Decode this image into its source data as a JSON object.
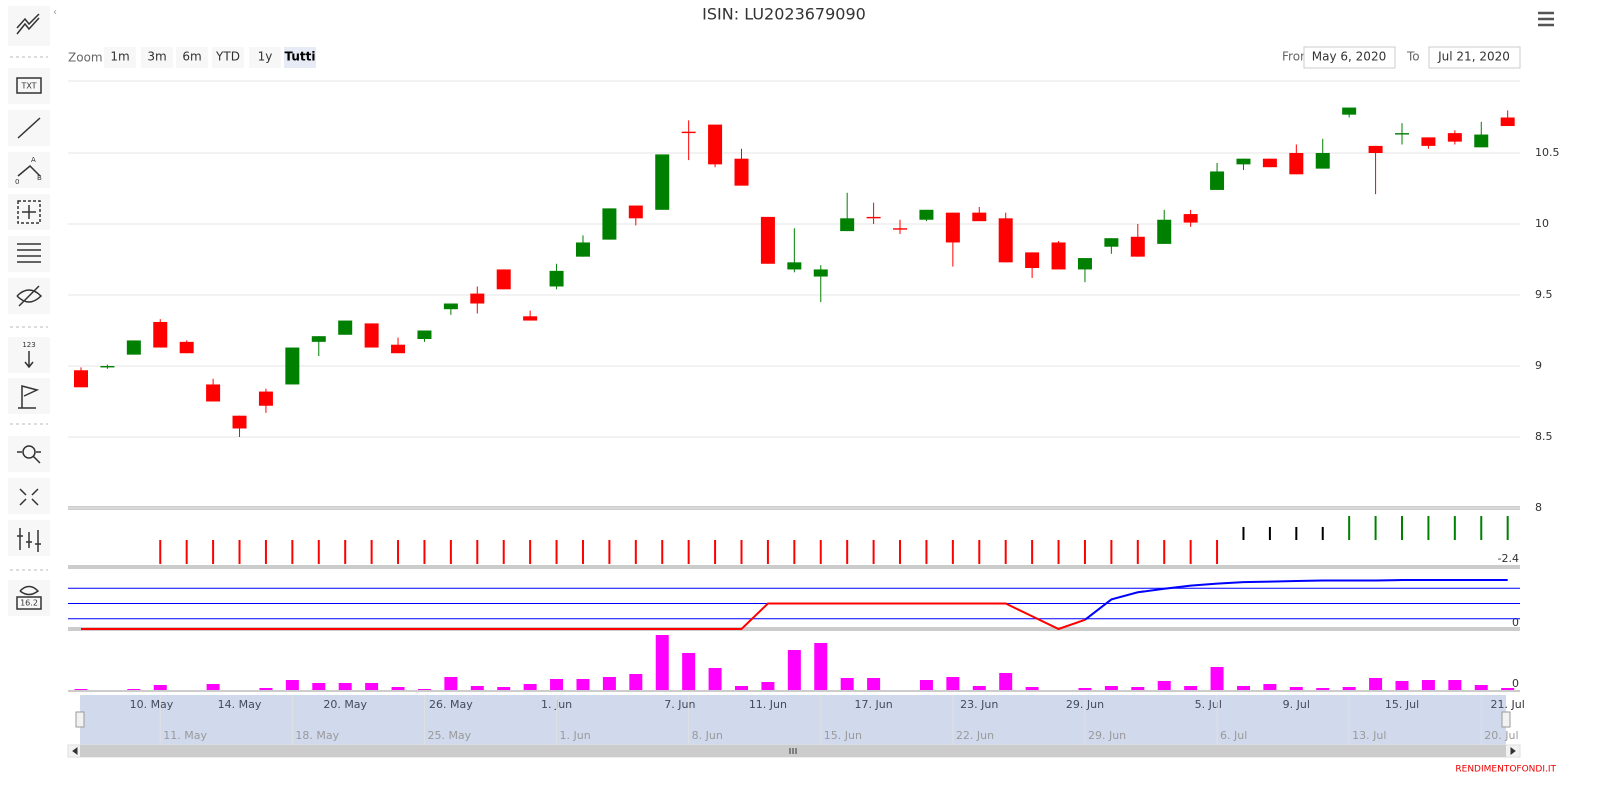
{
  "toolbar_labels": {
    "text": "TXT",
    "angle_a": "A",
    "angle_0": "0",
    "angle_b": "B",
    "measure": "123",
    "price": "16.2"
  },
  "chart_data": [
    {
      "type": "candlestick",
      "title": "ISIN: LU2023679090",
      "zoom_label": "Zoom",
      "zoom_buttons": [
        "1m",
        "3m",
        "6m",
        "YTD",
        "1y",
        "Tutti"
      ],
      "zoom_selected_index": 5,
      "from_label": "From",
      "from": "May 6, 2020",
      "to_label": "To",
      "to": "Jul 21, 2020",
      "x": [
        "2020-05-06",
        "2020-05-07",
        "2020-05-08",
        "2020-05-11",
        "2020-05-12",
        "2020-05-13",
        "2020-05-14",
        "2020-05-15",
        "2020-05-18",
        "2020-05-19",
        "2020-05-20",
        "2020-05-21",
        "2020-05-22",
        "2020-05-25",
        "2020-05-26",
        "2020-05-27",
        "2020-05-28",
        "2020-05-29",
        "2020-06-01",
        "2020-06-02",
        "2020-06-03",
        "2020-06-04",
        "2020-06-05",
        "2020-06-08",
        "2020-06-09",
        "2020-06-10",
        "2020-06-11",
        "2020-06-12",
        "2020-06-15",
        "2020-06-16",
        "2020-06-17",
        "2020-06-18",
        "2020-06-19",
        "2020-06-22",
        "2020-06-23",
        "2020-06-24",
        "2020-06-25",
        "2020-06-26",
        "2020-06-29",
        "2020-06-30",
        "2020-07-01",
        "2020-07-02",
        "2020-07-03",
        "2020-07-06",
        "2020-07-07",
        "2020-07-08",
        "2020-07-09",
        "2020-07-10",
        "2020-07-13",
        "2020-07-14",
        "2020-07-15",
        "2020-07-16",
        "2020-07-17",
        "2020-07-20",
        "2020-07-21"
      ],
      "open": [
        8.97,
        8.99,
        9.08,
        9.31,
        9.17,
        8.87,
        8.65,
        8.82,
        8.87,
        9.17,
        9.22,
        9.3,
        9.15,
        9.19,
        9.4,
        9.51,
        9.68,
        9.35,
        9.56,
        9.77,
        9.89,
        10.13,
        10.1,
        10.65,
        10.7,
        10.46,
        10.05,
        9.68,
        9.63,
        9.95,
        10.05,
        9.97,
        10.03,
        10.08,
        10.08,
        10.04,
        9.8,
        9.87,
        9.68,
        9.84,
        9.91,
        9.86,
        10.07,
        10.24,
        10.42,
        10.46,
        10.5,
        10.39,
        10.77,
        10.55,
        10.63,
        10.61,
        10.64,
        10.54,
        10.75
      ],
      "high": [
        8.99,
        9.01,
        9.18,
        9.33,
        9.18,
        8.91,
        8.65,
        8.84,
        9.13,
        9.21,
        9.32,
        9.3,
        9.2,
        9.25,
        9.44,
        9.56,
        9.68,
        9.39,
        9.72,
        9.92,
        10.11,
        10.13,
        10.49,
        10.73,
        10.7,
        10.53,
        10.05,
        9.97,
        9.71,
        10.22,
        10.15,
        10.03,
        10.1,
        10.08,
        10.12,
        10.08,
        9.8,
        9.88,
        9.76,
        9.9,
        10.0,
        10.1,
        10.1,
        10.43,
        10.46,
        10.46,
        10.56,
        10.6,
        10.82,
        10.55,
        10.71,
        10.61,
        10.66,
        10.72,
        10.8
      ],
      "low": [
        8.85,
        8.98,
        9.08,
        9.13,
        9.09,
        8.75,
        8.5,
        8.67,
        8.87,
        9.07,
        9.22,
        9.13,
        9.09,
        9.17,
        9.36,
        9.37,
        9.54,
        9.32,
        9.54,
        9.77,
        9.89,
        9.99,
        10.1,
        10.45,
        10.4,
        10.27,
        9.72,
        9.66,
        9.45,
        9.95,
        10.0,
        9.93,
        10.02,
        9.7,
        10.02,
        9.73,
        9.62,
        9.68,
        9.59,
        9.79,
        9.77,
        9.86,
        9.98,
        10.24,
        10.38,
        10.4,
        10.35,
        10.39,
        10.75,
        10.21,
        10.56,
        10.53,
        10.56,
        10.54,
        10.69
      ],
      "close": [
        8.85,
        9.0,
        9.18,
        9.13,
        9.09,
        8.75,
        8.56,
        8.72,
        9.13,
        9.21,
        9.32,
        9.13,
        9.09,
        9.25,
        9.44,
        9.44,
        9.54,
        9.32,
        9.67,
        9.87,
        10.11,
        10.04,
        10.49,
        10.64,
        10.42,
        10.27,
        9.72,
        9.73,
        9.68,
        10.04,
        10.04,
        9.96,
        10.1,
        9.87,
        10.02,
        9.73,
        9.69,
        9.68,
        9.76,
        9.9,
        9.77,
        10.03,
        10.01,
        10.37,
        10.46,
        10.4,
        10.35,
        10.5,
        10.82,
        10.5,
        10.64,
        10.55,
        10.58,
        10.63,
        10.69
      ],
      "up_color": "#008000",
      "down_color": "#ff0000",
      "ylim": [
        8,
        11
      ],
      "yticks": [
        8,
        8.5,
        9,
        9.5,
        10,
        10.5
      ],
      "grid": true,
      "xticks": [
        {
          "value": "2020-05-10",
          "label": "10. May"
        },
        {
          "value": "2020-05-14",
          "label": "14. May"
        },
        {
          "value": "2020-05-20",
          "label": "20. May"
        },
        {
          "value": "2020-05-26",
          "label": "26. May"
        },
        {
          "value": "2020-06-01",
          "label": "1. Jun"
        },
        {
          "value": "2020-06-07",
          "label": "7. Jun"
        },
        {
          "value": "2020-06-11",
          "label": "11. Jun"
        },
        {
          "value": "2020-06-17",
          "label": "17. Jun"
        },
        {
          "value": "2020-06-23",
          "label": "23. Jun"
        },
        {
          "value": "2020-06-29",
          "label": "29. Jun"
        },
        {
          "value": "2020-07-05",
          "label": "5. Jul"
        },
        {
          "value": "2020-07-09",
          "label": "9. Jul"
        },
        {
          "value": "2020-07-15",
          "label": "15. Jul"
        },
        {
          "value": "2020-07-21",
          "label": "21. Jul"
        }
      ],
      "navigator_ticks": [
        {
          "value": "2020-05-11",
          "label": "11. May"
        },
        {
          "value": "2020-05-18",
          "label": "18. May"
        },
        {
          "value": "2020-05-25",
          "label": "25. May"
        },
        {
          "value": "2020-06-01",
          "label": "1. Jun"
        },
        {
          "value": "2020-06-08",
          "label": "8. Jun"
        },
        {
          "value": "2020-06-15",
          "label": "15. Jun"
        },
        {
          "value": "2020-06-22",
          "label": "22. Jun"
        },
        {
          "value": "2020-06-29",
          "label": "29. Jun"
        },
        {
          "value": "2020-07-06",
          "label": "6. Jul"
        },
        {
          "value": "2020-07-13",
          "label": "13. Jul"
        },
        {
          "value": "2020-07-20",
          "label": "20. Jul"
        }
      ],
      "credits": "RENDIMENTOFONDI.IT"
    },
    {
      "type": "bar",
      "ylim": [
        -2.4,
        2.4
      ],
      "yticks": [
        -2.4
      ],
      "series": [
        {
          "color": "#ff0000",
          "values": [
            null,
            null,
            null,
            -2.3,
            -2.3,
            -2.3,
            -2.3,
            -2.3,
            -2.3,
            -2.3,
            -2.3,
            -2.3,
            -2.3,
            -2.3,
            -2.3,
            -2.3,
            -2.3,
            -2.3,
            -2.3,
            -2.3,
            -2.3,
            -2.3,
            -2.3,
            -2.3,
            -2.3,
            -2.3,
            -2.3,
            -2.3,
            -2.3,
            -2.3,
            -2.3,
            -2.3,
            -2.3,
            -2.3,
            -2.3,
            -2.3,
            -2.3,
            -2.3,
            -2.3,
            -2.3,
            -2.3,
            -2.3,
            -2.3,
            -2.3,
            null,
            null,
            null,
            null,
            null,
            null,
            null,
            null,
            null,
            null,
            null
          ]
        },
        {
          "color": "#000000",
          "values": [
            null,
            null,
            null,
            null,
            null,
            null,
            null,
            null,
            null,
            null,
            null,
            null,
            null,
            null,
            null,
            null,
            null,
            null,
            null,
            null,
            null,
            null,
            null,
            null,
            null,
            null,
            null,
            null,
            null,
            null,
            null,
            null,
            null,
            null,
            null,
            null,
            null,
            null,
            null,
            null,
            null,
            null,
            null,
            null,
            1.25,
            1.25,
            1.25,
            1.25,
            null,
            null,
            null,
            null,
            null,
            null,
            null
          ]
        },
        {
          "color": "#008000",
          "values": [
            null,
            null,
            null,
            null,
            null,
            null,
            null,
            null,
            null,
            null,
            null,
            null,
            null,
            null,
            null,
            null,
            null,
            null,
            null,
            null,
            null,
            null,
            null,
            null,
            null,
            null,
            null,
            null,
            null,
            null,
            null,
            null,
            null,
            null,
            null,
            null,
            null,
            null,
            null,
            null,
            null,
            null,
            null,
            null,
            null,
            null,
            null,
            null,
            2.3,
            2.3,
            2.3,
            2.3,
            2.3,
            2.3,
            2.3
          ]
        }
      ]
    },
    {
      "type": "line",
      "ylim": [
        0,
        100
      ],
      "yticks": [
        0
      ],
      "plot_lines": [
        20,
        50,
        80
      ],
      "plot_line_color": "#0000ff",
      "series": [
        {
          "color": "#ff0000",
          "values": [
            0,
            0,
            0,
            0,
            0,
            0,
            0,
            0,
            0,
            0,
            0,
            0,
            0,
            0,
            0,
            0,
            0,
            0,
            0,
            0,
            0,
            0,
            0,
            0,
            0,
            0,
            50,
            50,
            50,
            50,
            50,
            50,
            50,
            50,
            50,
            50,
            25,
            0,
            18,
            null,
            null,
            null,
            null,
            null,
            null,
            null,
            null,
            null,
            null,
            null,
            null,
            null,
            null,
            null,
            null
          ]
        },
        {
          "color": "#0000ff",
          "values": [
            null,
            null,
            null,
            null,
            null,
            null,
            null,
            null,
            null,
            null,
            null,
            null,
            null,
            null,
            null,
            null,
            null,
            null,
            null,
            null,
            null,
            null,
            null,
            null,
            null,
            null,
            null,
            null,
            null,
            null,
            null,
            null,
            null,
            null,
            null,
            null,
            null,
            null,
            18,
            58,
            72,
            79,
            85,
            89,
            92,
            93,
            94,
            95,
            95,
            95,
            96,
            96,
            96,
            96,
            96
          ]
        }
      ]
    },
    {
      "type": "bar",
      "ylim": [
        0,
        60
      ],
      "yticks": [
        0
      ],
      "series": [
        {
          "color": "#ff00ff",
          "values": [
            1,
            0,
            1,
            5,
            0,
            6,
            0,
            2,
            10,
            7,
            7,
            7,
            3,
            1,
            13,
            4,
            3,
            6,
            11,
            11,
            13,
            16,
            55,
            37,
            22,
            4,
            8,
            40,
            47,
            12,
            12,
            0,
            10,
            13,
            4,
            17,
            3,
            0,
            2,
            4,
            3,
            9,
            4,
            23,
            4,
            6,
            3,
            2,
            3,
            12,
            9,
            10,
            10,
            5,
            2
          ]
        }
      ]
    }
  ]
}
